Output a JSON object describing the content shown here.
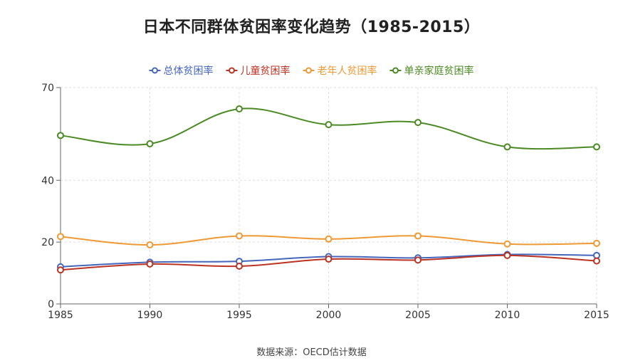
{
  "chart_data": {
    "type": "line",
    "title": "日本不同群体贫困率变化趋势（1985-2015）",
    "x": [
      "1985",
      "1990",
      "1995",
      "2000",
      "2005",
      "2010",
      "2015"
    ],
    "ylim": [
      0,
      70
    ],
    "yticks": [
      0,
      20,
      40,
      70
    ],
    "grid": true,
    "legend_position": "top-center",
    "smooth": true,
    "series": [
      {
        "name": "总体贫困率",
        "color": "#4466bb",
        "values": [
          12,
          13.5,
          13.8,
          15.3,
          14.9,
          16.0,
          15.7
        ]
      },
      {
        "name": "儿童贫困率",
        "color": "#bb3322",
        "values": [
          11,
          12.9,
          12.2,
          14.5,
          14.2,
          15.7,
          13.9
        ]
      },
      {
        "name": "老年人贫困率",
        "color": "#ee9933",
        "values": [
          21.8,
          19.1,
          22.0,
          21.0,
          22.0,
          19.4,
          19.6
        ]
      },
      {
        "name": "单亲家庭贫困率",
        "color": "#4a8a22",
        "values": [
          54.5,
          51.8,
          63.1,
          58.0,
          58.7,
          50.8,
          50.8
        ]
      }
    ]
  },
  "source_note": "数据来源：OECD估计数据"
}
